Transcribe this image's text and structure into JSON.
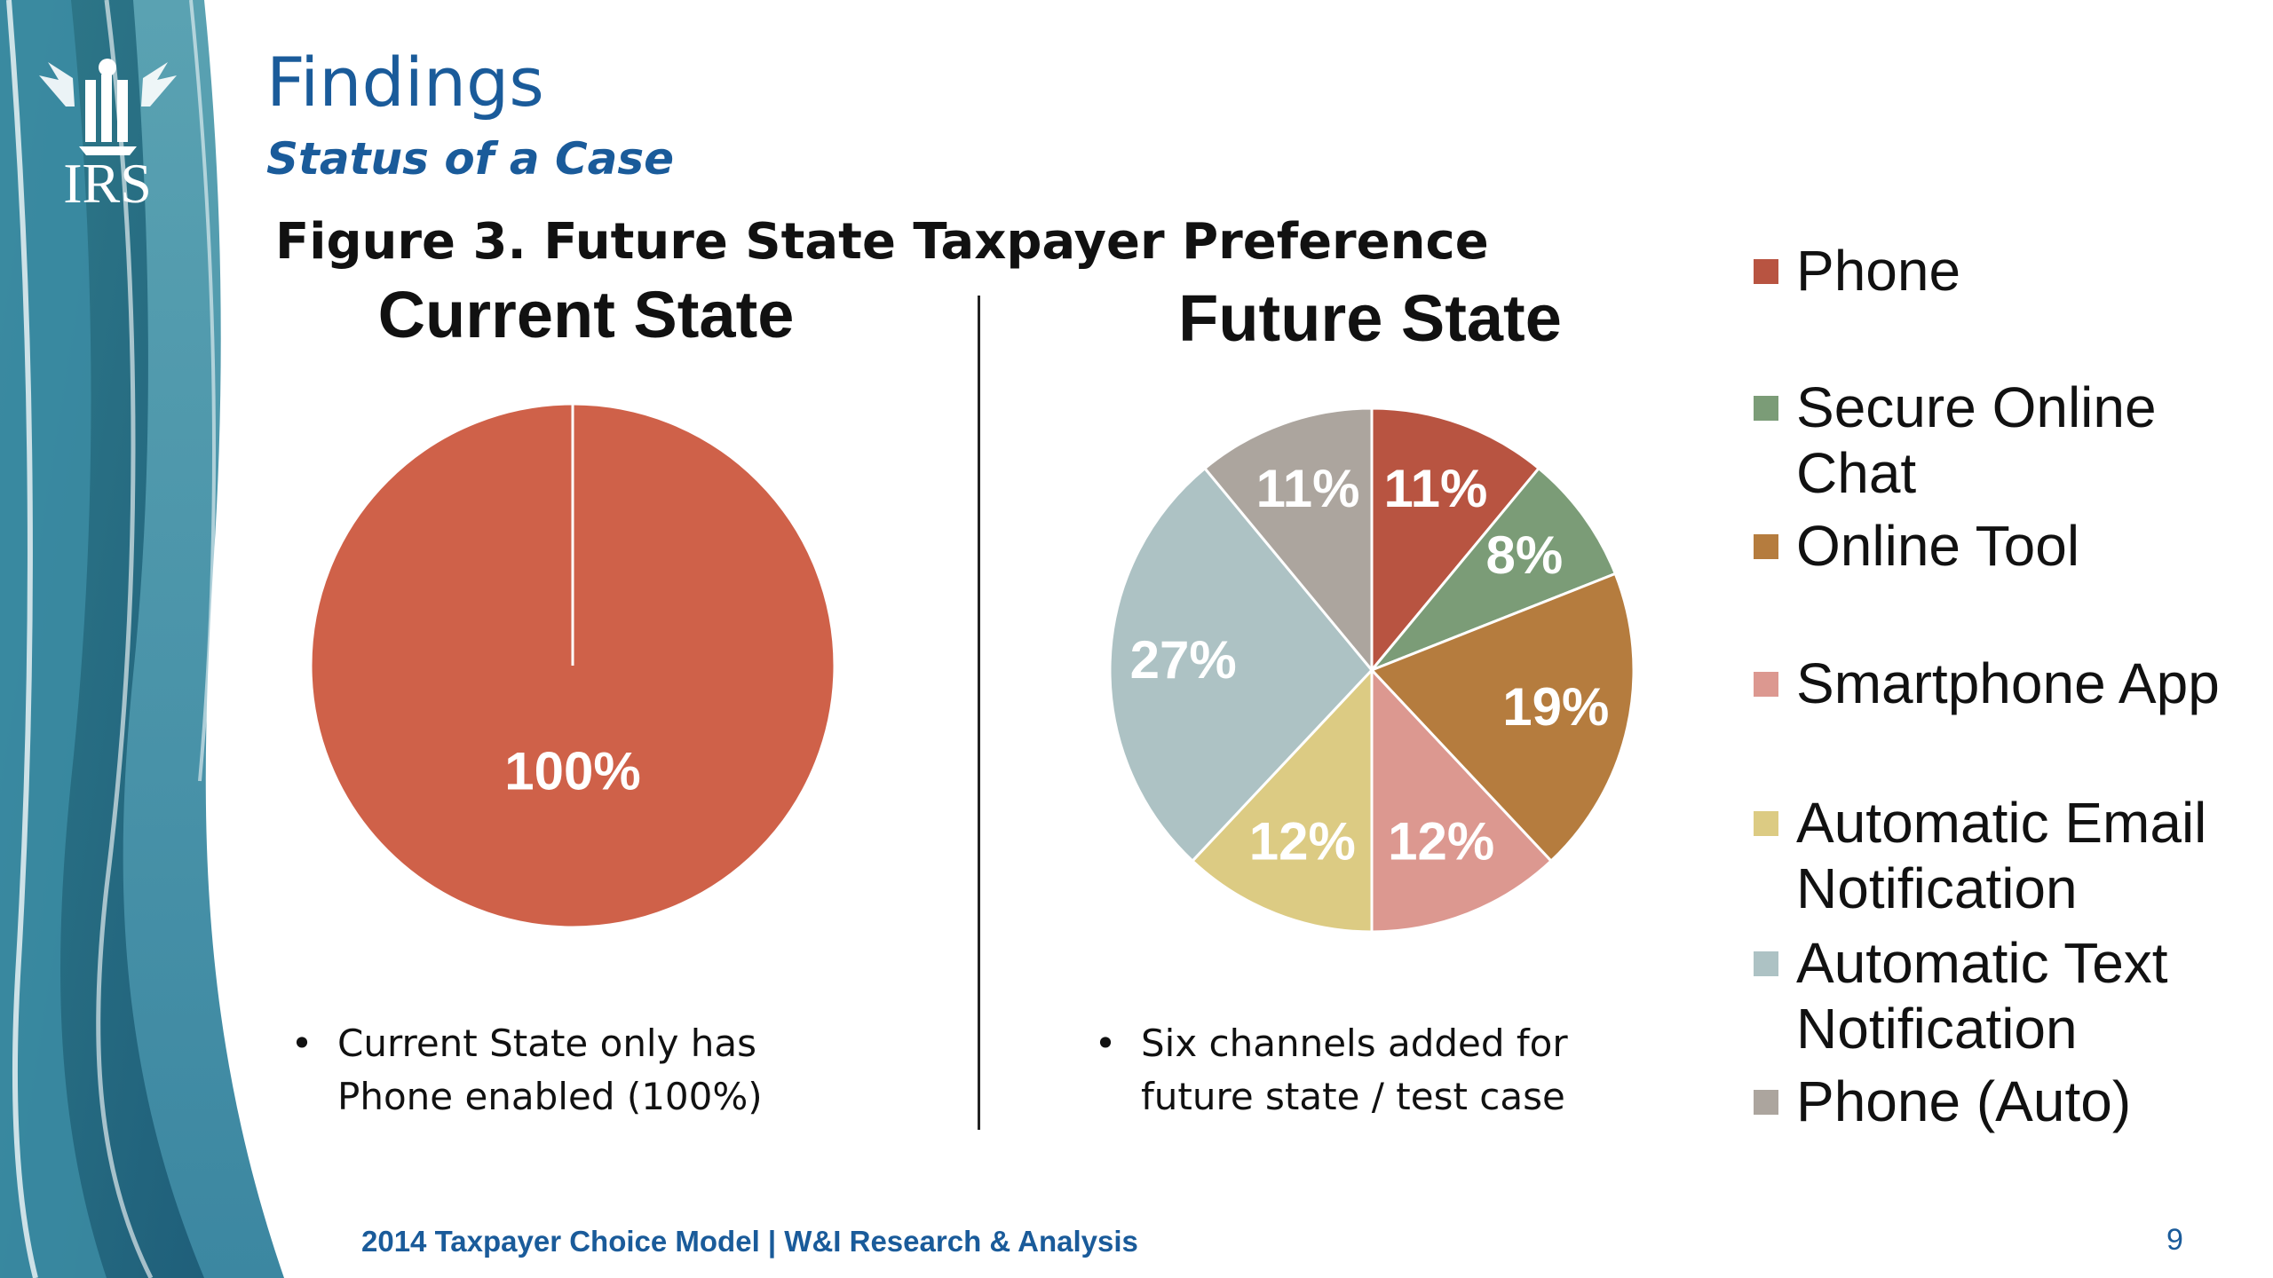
{
  "header": {
    "title": "Findings",
    "subtitle": "Status of a Case",
    "logo_text": "IRS"
  },
  "figure_title": "Figure 3. Future State Taxpayer Preference",
  "chart_data": [
    {
      "type": "pie",
      "title": "Current State",
      "categories": [
        "Phone"
      ],
      "values": [
        100
      ],
      "labels": [
        "100%"
      ],
      "colors": [
        "#cf6149"
      ]
    },
    {
      "type": "pie",
      "title": "Future State",
      "categories": [
        "Phone",
        "Secure Online Chat",
        "Online Tool",
        "Smartphone App",
        "Automatic Email Notification",
        "Automatic Text Notification",
        "Phone (Auto)"
      ],
      "values": [
        11,
        8,
        19,
        12,
        12,
        27,
        11
      ],
      "labels": [
        "11%",
        "8%",
        "19%",
        "12%",
        "12%",
        "27%",
        "11%"
      ],
      "colors": [
        "#b85441",
        "#7b9c77",
        "#b57c3e",
        "#dc9890",
        "#dccb83",
        "#adc2c4",
        "#aca59e"
      ]
    }
  ],
  "legend": {
    "placement": "right",
    "items": [
      {
        "label": "Phone",
        "color": "#b85441"
      },
      {
        "label": "Secure Online Chat",
        "color": "#7b9c77"
      },
      {
        "label": "Online Tool",
        "color": "#b57c3e"
      },
      {
        "label": "Smartphone App",
        "color": "#dc9890"
      },
      {
        "label": "Automatic Email Notification",
        "color": "#dccb83"
      },
      {
        "label": "Automatic Text Notification",
        "color": "#adc2c4"
      },
      {
        "label": "Phone (Auto)",
        "color": "#aca59e"
      }
    ]
  },
  "bullets": {
    "current": "Current State only has\nPhone enabled (100%)",
    "future": "Six channels added for\nfuture state / test case"
  },
  "footer": "2014 Taxpayer Choice Model | W&I Research & Analysis",
  "page_number": "9"
}
